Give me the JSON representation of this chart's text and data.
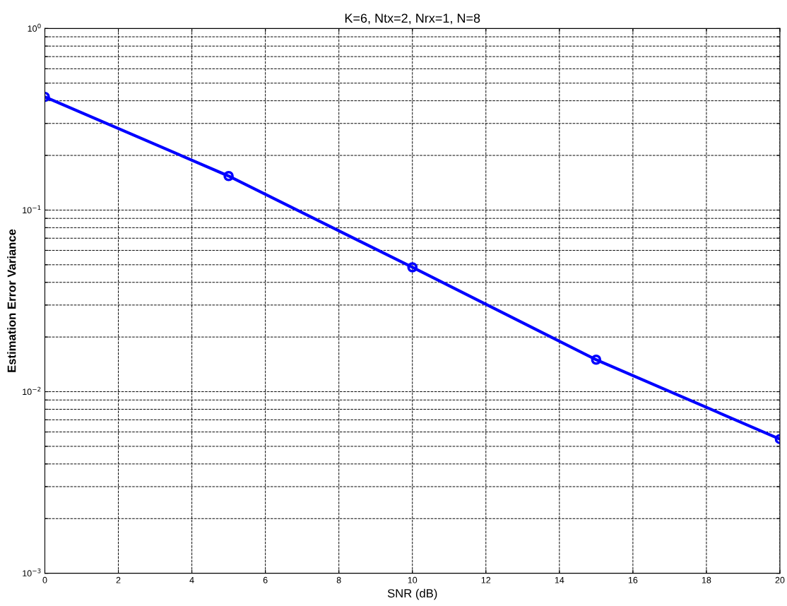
{
  "chart_data": {
    "type": "line",
    "title": "K=6, Ntx=2, Nrx=1, N=8",
    "xlabel": "SNR (dB)",
    "ylabel": "Estimation Error Variance",
    "x": [
      0,
      5,
      10,
      15,
      20
    ],
    "series": [
      {
        "color": "#0000ff",
        "values": [
          0.42,
          0.154,
          0.0484,
          0.015,
          0.00548
        ]
      }
    ],
    "log": "y",
    "xlim": [
      0,
      20
    ],
    "xticks": [
      0,
      2,
      4,
      6,
      8,
      10,
      12,
      14,
      16,
      18,
      20
    ],
    "ylim": [
      0.001,
      1
    ],
    "yticks": [
      {
        "value": 0.001,
        "label": "10$^{−3}$"
      },
      {
        "value": 0.002,
        "label": null
      },
      {
        "value": 0.003,
        "label": null
      },
      {
        "value": 0.004,
        "label": null
      },
      {
        "value": 0.005,
        "label": null
      },
      {
        "value": 0.006,
        "label": null
      },
      {
        "value": 0.007,
        "label": null
      },
      {
        "value": 0.008,
        "label": null
      },
      {
        "value": 0.009,
        "label": null
      },
      {
        "value": 0.01,
        "label": "10$^{−2}$"
      },
      {
        "value": 0.02,
        "label": null
      },
      {
        "value": 0.03,
        "label": null
      },
      {
        "value": 0.04,
        "label": null
      },
      {
        "value": 0.05,
        "label": null
      },
      {
        "value": 0.06,
        "label": null
      },
      {
        "value": 0.07,
        "label": null
      },
      {
        "value": 0.08,
        "label": null
      },
      {
        "value": 0.09,
        "label": null
      },
      {
        "value": 0.1,
        "label": "10$^{−1}$"
      },
      {
        "value": 0.2,
        "label": null
      },
      {
        "value": 0.3,
        "label": null
      },
      {
        "value": 0.4,
        "label": null
      },
      {
        "value": 0.5,
        "label": null
      },
      {
        "value": 0.6,
        "label": null
      },
      {
        "value": 0.7,
        "label": null
      },
      {
        "value": 0.8,
        "label": null
      },
      {
        "value": 0.9,
        "label": null
      },
      {
        "value": 1,
        "label": "10$^{0}$"
      }
    ],
    "grid": true,
    "marker": "circle",
    "line_style": "solid"
  }
}
